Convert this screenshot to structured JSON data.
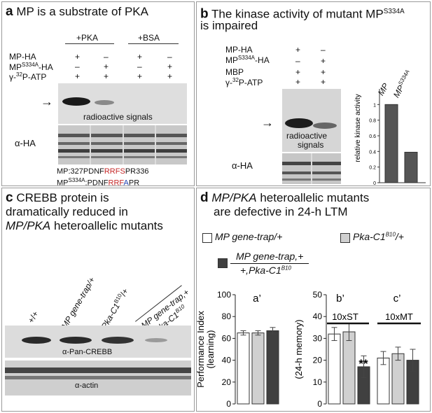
{
  "panel_a": {
    "letter": "a",
    "title": "MP is a substrate of PKA",
    "col_headers": [
      "+PKA",
      "+BSA"
    ],
    "row_labels": [
      "MP-HA",
      "MP",
      "γ-",
      "P-ATP"
    ],
    "row_label_sup": [
      "S334A",
      "32"
    ],
    "row_label_suffix": "-HA",
    "symbols": [
      [
        "+",
        "–",
        "+",
        "–"
      ],
      [
        "–",
        "+",
        "–",
        "+"
      ],
      [
        "+",
        "+",
        "+",
        "+"
      ]
    ],
    "blot1_label": "radioactive signals",
    "blot2_label": "α-HA",
    "seq1_prefix": "MP:327PDNF",
    "seq1_red": "RRFS",
    "seq1_suffix": "PR336",
    "seq2_prefix": "MP",
    "seq2_sup": "S334A",
    "seq2_mid": ":PDNF",
    "seq2_red": "RRF",
    "seq2_blue": "A",
    "seq2_suffix": "PR"
  },
  "panel_b": {
    "letter": "b",
    "title_line1": "The kinase activity of mutant MP",
    "title_sup": "S334A",
    "title_line2": "is impaired",
    "row_labels": [
      "MP-HA",
      "MP",
      "MBP",
      "γ-",
      "P-ATP"
    ],
    "row_label_sup": [
      "S334A",
      "32"
    ],
    "row_label_suffix": "-HA",
    "symbols": [
      [
        "+",
        "–"
      ],
      [
        "–",
        "+"
      ],
      [
        "+",
        "+"
      ],
      [
        "+",
        "+"
      ]
    ],
    "blot1_label_1": "radioactive",
    "blot1_label_2": "signals",
    "blot2_label": "α-HA",
    "bar_label_1": "MP",
    "bar_label_2": "MP",
    "bar_label_2_sup": "S334A"
  },
  "panel_c": {
    "letter": "c",
    "title_line1": "CREBB protein is",
    "title_line2": "dramatically reduced in",
    "title_line3_italic": "MP/PKA",
    "title_line3_rest": " heteroallelic mutants",
    "lanes": [
      "+/+",
      "MP gene-trap/+",
      "Pka-C1",
      "/+",
      "MP gene-trap,+",
      "+,Pka-C1"
    ],
    "lane_sup": "B10",
    "blot1_label": "α-Pan-CREBB",
    "blot2_label": "α-actin"
  },
  "panel_d": {
    "letter": "d",
    "title_italic": "MP/PKA",
    "title_rest": " heteroallelic mutants",
    "title_line2": "are defective in 24-h LTM",
    "legend": {
      "item1": "MP gene-trap/+",
      "item2_main": "Pka-C1",
      "item2_sup": "B10",
      "item2_tail": "/+",
      "item3_top": "MP gene-trap,+",
      "item3_bottom_main": "+,Pka-C1",
      "item3_bottom_sup": "B10"
    },
    "sub_labels": [
      "a’",
      "b’",
      "c’"
    ],
    "group_labels": [
      "10xST",
      "10xMT"
    ],
    "y_label_a_1": "Performance Index",
    "y_label_a_2": "(learning)",
    "y_label_b": "(24-h memory)",
    "y_ticks": [
      "0",
      "20",
      "40",
      "60",
      "80",
      "100"
    ],
    "significance": "**"
  },
  "colors": {
    "white_bar": "#ffffff",
    "light_bar": "#d0d0d0",
    "dark_bar": "#404040",
    "red_residue": "#c62828",
    "blue_residue": "#1f3fb0",
    "blot_bg": "#dcdcdc"
  },
  "chart_data": [
    {
      "type": "bar",
      "name": "a’",
      "categories": [
        "MP gene-trap/+",
        "Pka-C1 B10/+",
        "MP gene-trap,+ / +,Pka-C1 B10"
      ],
      "values": [
        65,
        65,
        67
      ],
      "errors": [
        2,
        2,
        3
      ],
      "ylim": [
        0,
        100
      ]
    },
    {
      "type": "bar",
      "name": "b’ 10xST",
      "categories": [
        "MP gene-trap/+",
        "Pka-C1 B10/+",
        "MP gene-trap,+ / +,Pka-C1 B10"
      ],
      "values": [
        32,
        33,
        17
      ],
      "errors": [
        3,
        4,
        5
      ],
      "ylim": [
        0,
        50
      ]
    },
    {
      "type": "bar",
      "name": "c’ 10xMT",
      "categories": [
        "MP gene-trap/+",
        "Pka-C1 B10/+",
        "MP gene-trap,+ / +,Pka-C1 B10"
      ],
      "values": [
        21,
        23,
        20
      ],
      "errors": [
        3,
        3,
        5
      ],
      "ylim": [
        0,
        50
      ]
    },
    {
      "type": "bar",
      "name": "relative kinase activity",
      "categories": [
        "MP",
        "MP S334A"
      ],
      "values": [
        1.0,
        0.39
      ],
      "ylabel": "relative kinase activity",
      "yticks": [
        "0",
        "0.2",
        "0.4",
        "0.6",
        "0.8",
        "1"
      ],
      "ylim": [
        0,
        1.2
      ]
    }
  ]
}
